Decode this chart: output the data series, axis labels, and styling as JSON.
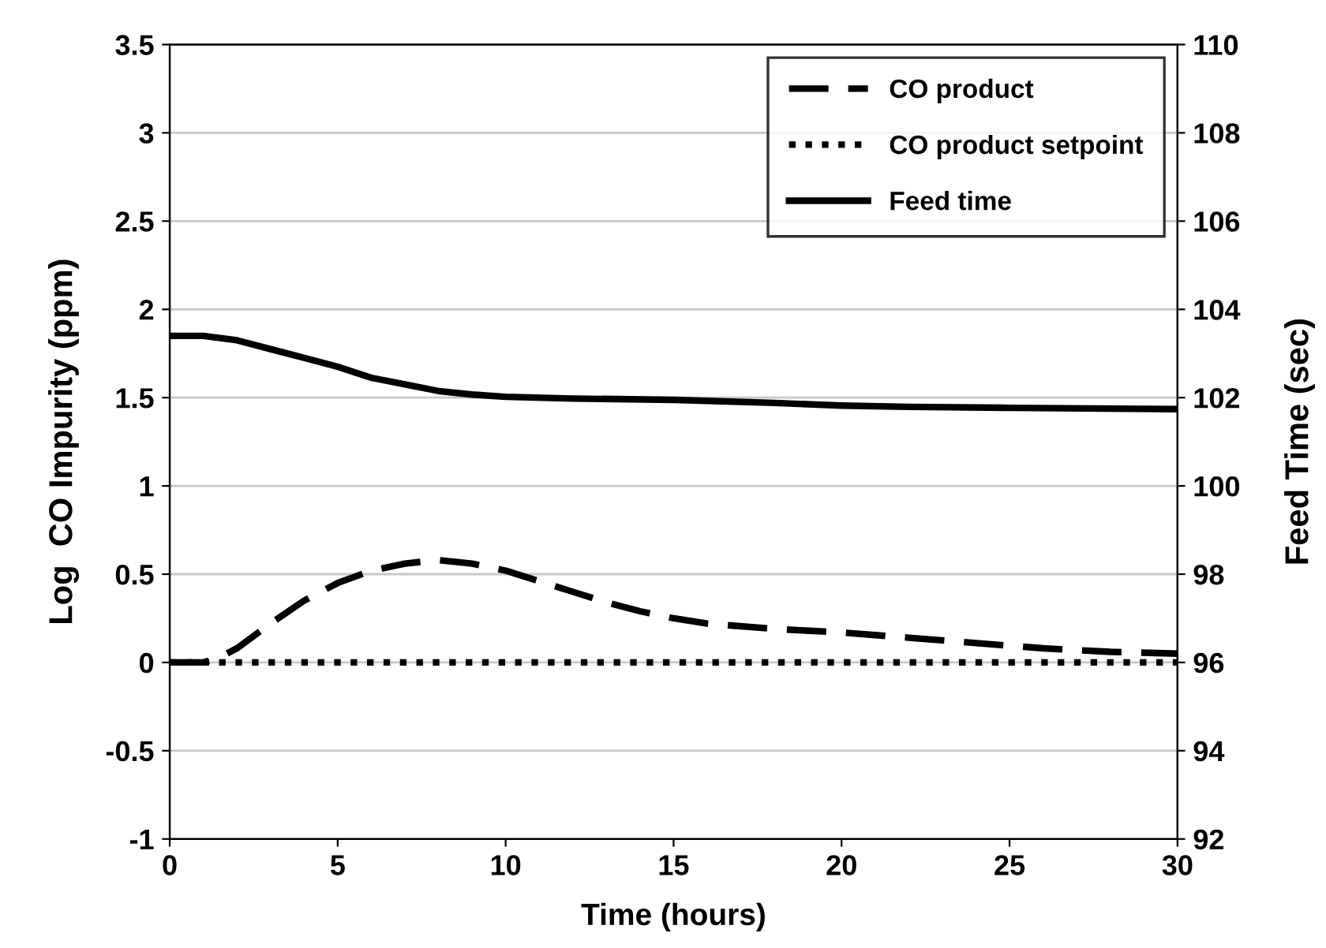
{
  "chart_data": {
    "type": "line",
    "xlabel": "Time (hours)",
    "ylabel": "Log  CO Impurity (ppm)",
    "y2label": "Feed Time (sec)",
    "xlim": [
      0,
      30
    ],
    "xticks": [
      0,
      5,
      10,
      15,
      20,
      25,
      30
    ],
    "ylim": [
      -1,
      3.5
    ],
    "yticks": [
      -1,
      -0.5,
      0,
      0.5,
      1,
      1.5,
      2,
      2.5,
      3,
      3.5
    ],
    "y2lim": [
      92,
      110
    ],
    "y2ticks": [
      92,
      94,
      96,
      98,
      100,
      102,
      104,
      106,
      108,
      110
    ],
    "grid": "y",
    "legend": "top right",
    "marker": "none",
    "series": [
      {
        "name": "CO product",
        "color": "#000000",
        "line_style": "dashed",
        "x": [
          0,
          1,
          1.5,
          2,
          3,
          4,
          5,
          6,
          7,
          8,
          9,
          10,
          11,
          12,
          13,
          14,
          15,
          16,
          18,
          20,
          22,
          24,
          26,
          28,
          30
        ],
        "values": [
          0,
          0,
          0.03,
          0.08,
          0.22,
          0.35,
          0.45,
          0.52,
          0.56,
          0.58,
          0.56,
          0.52,
          0.46,
          0.4,
          0.34,
          0.29,
          0.25,
          0.22,
          0.19,
          0.17,
          0.14,
          0.11,
          0.08,
          0.06,
          0.05
        ]
      },
      {
        "name": "CO product setpoint",
        "color": "#000000",
        "line_style": "dotted",
        "x": [
          0,
          30
        ],
        "values": [
          0,
          0
        ]
      },
      {
        "name": "Feed time",
        "color": "#000000",
        "line_style": "solid",
        "axis": "y2",
        "x": [
          0,
          1,
          2,
          3,
          4,
          5,
          6,
          7,
          8,
          9,
          10,
          12,
          15,
          18,
          20,
          22,
          25,
          30
        ],
        "values": [
          103.4,
          103.4,
          103.3,
          103.1,
          102.9,
          102.7,
          102.45,
          102.3,
          102.15,
          102.07,
          102.02,
          101.98,
          101.95,
          101.88,
          101.82,
          101.79,
          101.77,
          101.74
        ]
      }
    ]
  }
}
